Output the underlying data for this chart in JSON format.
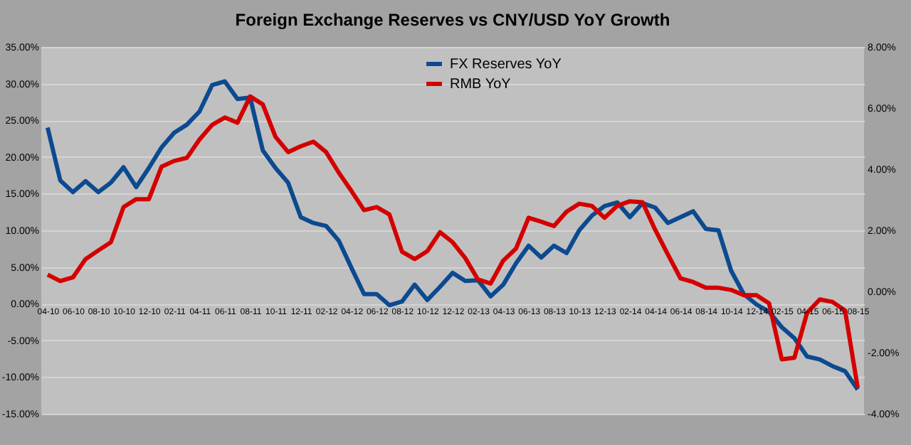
{
  "chart_data": {
    "type": "line",
    "title": "Foreign Exchange Reserves vs CNY/USD YoY Growth",
    "categories": [
      "04-10",
      null,
      "06-10",
      null,
      "08-10",
      null,
      "10-10",
      null,
      "12-10",
      null,
      "02-11",
      null,
      "04-11",
      null,
      "06-11",
      null,
      "08-11",
      null,
      "10-11",
      null,
      "12-11",
      null,
      "02-12",
      null,
      "04-12",
      null,
      "06-12",
      null,
      "08-12",
      null,
      "10-12",
      null,
      "12-12",
      null,
      "02-13",
      null,
      "04-13",
      null,
      "06-13",
      null,
      "08-13",
      null,
      "10-13",
      null,
      "12-13",
      null,
      "02-14",
      null,
      "04-14",
      null,
      "06-14",
      null,
      "08-14",
      null,
      "10-14",
      null,
      "12-14",
      null,
      "02-15",
      null,
      "04-15",
      null,
      "06-15",
      null,
      "08-15"
    ],
    "series": [
      {
        "name": "FX Reserves YoY",
        "color": "#0c4a8f",
        "values": [
          24.0,
          16.8,
          15.2,
          16.7,
          15.2,
          16.5,
          18.6,
          15.9,
          18.5,
          21.3,
          23.3,
          24.4,
          26.2,
          29.8,
          30.3,
          27.9,
          28.1,
          20.9,
          18.5,
          16.5,
          11.8,
          11.0,
          10.6,
          8.6,
          4.9,
          1.3,
          1.3,
          -0.2,
          0.3,
          2.6,
          0.5,
          2.3,
          4.2,
          3.1,
          3.2,
          1.0,
          2.6,
          5.5,
          7.9,
          6.3,
          7.9,
          6.9,
          10.0,
          12.0,
          13.3,
          13.8,
          11.8,
          13.7,
          13.1,
          11.0,
          11.8,
          12.6,
          10.2,
          10.0,
          4.5,
          1.3,
          -0.1,
          -1.1,
          -3.2,
          -4.7,
          -7.2,
          -7.6,
          -8.5,
          -9.2,
          -11.7
        ]
      },
      {
        "name": "RMB YoY",
        "color": "#d40000",
        "axis": "y2",
        "values": [
          0.55,
          0.34,
          0.46,
          1.06,
          1.34,
          1.61,
          2.76,
          3.02,
          3.02,
          4.08,
          4.27,
          4.37,
          4.97,
          5.45,
          5.69,
          5.52,
          6.38,
          6.12,
          5.06,
          4.56,
          4.75,
          4.9,
          4.56,
          3.89,
          3.29,
          2.66,
          2.76,
          2.52,
          1.3,
          1.06,
          1.32,
          1.94,
          1.61,
          1.09,
          0.39,
          0.26,
          1.01,
          1.4,
          2.41,
          2.28,
          2.14,
          2.61,
          2.87,
          2.8,
          2.41,
          2.8,
          2.95,
          2.92,
          2.02,
          1.21,
          0.43,
          0.31,
          0.12,
          0.12,
          0.05,
          -0.12,
          -0.12,
          -0.39,
          -2.22,
          -2.17,
          -0.7,
          -0.26,
          -0.34,
          -0.62,
          -3.15
        ]
      }
    ],
    "ylim": [
      -15,
      35
    ],
    "yticks": [
      {
        "value": -15,
        "label": "-15.00%"
      },
      {
        "value": -10,
        "label": "-10.00%"
      },
      {
        "value": -5,
        "label": "-5.00%"
      },
      {
        "value": 0,
        "label": "0.00%"
      },
      {
        "value": 5,
        "label": "5.00%"
      },
      {
        "value": 10,
        "label": "10.00%"
      },
      {
        "value": 15,
        "label": "15.00%"
      },
      {
        "value": 20,
        "label": "20.00%"
      },
      {
        "value": 25,
        "label": "25.00%"
      },
      {
        "value": 30,
        "label": "30.00%"
      },
      {
        "value": 35,
        "label": "35.00%"
      }
    ],
    "y2lim": [
      -4,
      8
    ],
    "y2ticks": [
      {
        "value": -4,
        "label": "-4.00%"
      },
      {
        "value": -2,
        "label": "-2.00%"
      },
      {
        "value": 0,
        "label": "0.00%"
      },
      {
        "value": 2,
        "label": "2.00%"
      },
      {
        "value": 4,
        "label": "4.00%"
      },
      {
        "value": 6,
        "label": "6.00%"
      },
      {
        "value": 8,
        "label": "8.00%"
      }
    ],
    "grid": "y",
    "legend": "top",
    "marker": "none",
    "line_style": "solid"
  }
}
